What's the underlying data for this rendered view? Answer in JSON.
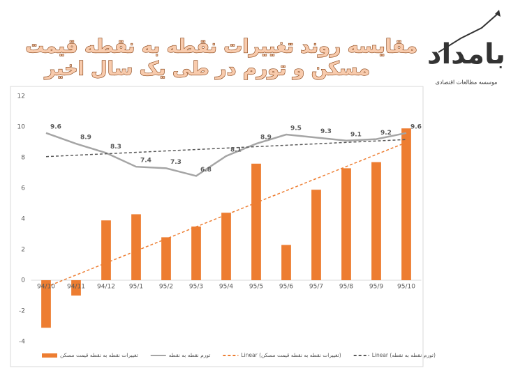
{
  "chart_data": {
    "type": "bar-line",
    "title_lines": [
      "مقایسه روند تغییرات نقطه به نقطه قیمت",
      "مسکن و تورم در طی یک سال اخیر"
    ],
    "logo": {
      "name": "بامداد",
      "subtitle": "موسسه مطالعات اقتصادی"
    },
    "categories": [
      "94/10",
      "94/11",
      "94/12",
      "95/1",
      "95/2",
      "95/3",
      "95/4",
      "95/5",
      "95/6",
      "95/7",
      "95/8",
      "95/9",
      "95/10"
    ],
    "series": [
      {
        "name": "تغییرات نقطه به نقطه قیمت مسکن",
        "kind": "bar",
        "color": "#ed7d31",
        "values": [
          -3.1,
          -1.0,
          3.9,
          4.3,
          2.8,
          3.5,
          4.4,
          7.6,
          2.3,
          5.9,
          7.3,
          7.7,
          9.9
        ],
        "trendline": {
          "name": "Linear (تغییرات نقطه به نقطه قیمت مسکن)",
          "color": "#ed7d31"
        }
      },
      {
        "name": "تورم نقطه به نقطه",
        "kind": "line",
        "color": "#a5a5a5",
        "values": [
          9.6,
          8.9,
          8.3,
          7.4,
          7.3,
          6.8,
          8.1,
          8.9,
          9.5,
          9.3,
          9.1,
          9.2,
          9.6
        ],
        "show_labels": true,
        "trendline": {
          "name": "Linear (تورم نقطه به نقطه)",
          "color": "#595959"
        }
      }
    ],
    "ylim": [
      -4,
      12
    ],
    "yticks": [
      -4,
      -2,
      0,
      2,
      4,
      6,
      8,
      10,
      12
    ],
    "grid": false
  }
}
